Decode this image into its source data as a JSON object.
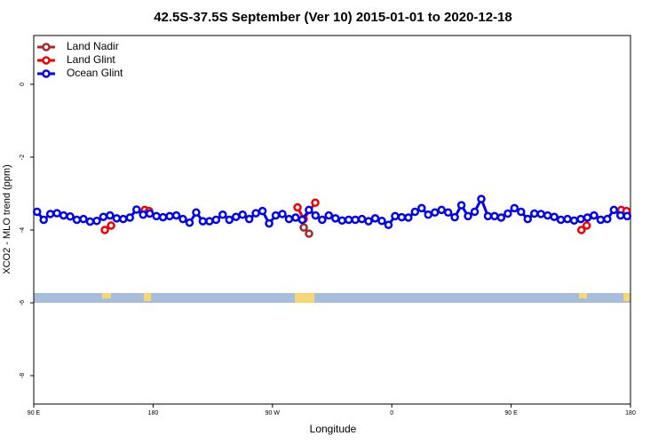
{
  "chart_data": {
    "type": "line",
    "title": "42.5S-37.5S September (Ver 10)   2015-01-01 to 2020-12-18",
    "xlabel": "Longitude",
    "ylabel": "XCO2 - MLO trend (ppm)",
    "xlim": [
      90,
      540
    ],
    "xticks": [
      {
        "value": 90,
        "label": "90 E"
      },
      {
        "value": 180,
        "label": "180"
      },
      {
        "value": 270,
        "label": "90 W"
      },
      {
        "value": 360,
        "label": "0"
      },
      {
        "value": 450,
        "label": "90 E"
      },
      {
        "value": 540,
        "label": "180"
      }
    ],
    "ylim": [
      -8.78,
      1.34
    ],
    "yticks": [
      0,
      -2,
      -4,
      -6,
      -8
    ],
    "legend": "upper left",
    "series": [
      {
        "name": "Land Nadir",
        "color": "#a52a2a",
        "x": [
          293.6,
          297.6
        ],
        "values": [
          -3.93,
          -4.1
        ]
      },
      {
        "name": "Land Glint",
        "color": "#ee0000",
        "x": [
          143.6,
          148.3,
          null,
          173.7,
          177,
          null,
          288.9,
          293.6,
          302.3,
          null,
          503,
          507,
          null,
          533,
          537
        ],
        "values": [
          -4.0,
          -3.88,
          null,
          -3.45,
          -3.48,
          null,
          -3.38,
          -3.7,
          -3.25,
          null,
          -4.0,
          -3.88,
          null,
          -3.45,
          -3.48
        ]
      },
      {
        "name": "Ocean Glint",
        "color": "#0000ee",
        "x": [
          92.5,
          97.5,
          102.5,
          107.5,
          112.5,
          117.5,
          122.5,
          127.5,
          132.5,
          137.5,
          142.5,
          147.5,
          152.5,
          157.5,
          162.5,
          167.5,
          172.5,
          177.5,
          182.5,
          187.5,
          192.5,
          197.5,
          202.5,
          207.5,
          212.5,
          217.5,
          222.5,
          227.5,
          232.5,
          237.5,
          242.5,
          247.5,
          252.5,
          257.5,
          262.5,
          267.5,
          272.5,
          277.5,
          282.5,
          287.5,
          292.5,
          297.5,
          302.5,
          307.5,
          312.5,
          317.5,
          322.5,
          327.5,
          332.5,
          337.5,
          342.5,
          347.5,
          352.5,
          357.5,
          362.5,
          367.5,
          372.5,
          377.5,
          382.5,
          387.5,
          392.5,
          397.5,
          402.5,
          407.5,
          412.5,
          417.5,
          422.5,
          427.5,
          432.5,
          437.5,
          442.5,
          447.5,
          452.5,
          457.5,
          462.5,
          467.5,
          472.5,
          477.5,
          482.5,
          487.5,
          492.5,
          497.5,
          502.5,
          507.5,
          512.5,
          517.5,
          522.5,
          527.5,
          532.5,
          537.5
        ],
        "values": [
          -3.5,
          -3.72,
          -3.56,
          -3.54,
          -3.6,
          -3.63,
          -3.72,
          -3.7,
          -3.77,
          -3.75,
          -3.64,
          -3.6,
          -3.68,
          -3.7,
          -3.66,
          -3.44,
          -3.58,
          -3.55,
          -3.62,
          -3.65,
          -3.62,
          -3.6,
          -3.7,
          -3.8,
          -3.52,
          -3.76,
          -3.76,
          -3.72,
          -3.58,
          -3.72,
          -3.64,
          -3.58,
          -3.7,
          -3.54,
          -3.48,
          -3.82,
          -3.6,
          -3.56,
          -3.7,
          -3.66,
          -3.72,
          -3.45,
          -3.6,
          -3.72,
          -3.6,
          -3.68,
          -3.74,
          -3.72,
          -3.72,
          -3.7,
          -3.76,
          -3.68,
          -3.75,
          -3.86,
          -3.62,
          -3.65,
          -3.66,
          -3.5,
          -3.4,
          -3.58,
          -3.52,
          -3.45,
          -3.52,
          -3.65,
          -3.32,
          -3.62,
          -3.5,
          -3.15,
          -3.62,
          -3.62,
          -3.66,
          -3.55,
          -3.4,
          -3.5,
          -3.7,
          -3.55,
          -3.56,
          -3.6,
          -3.64,
          -3.72,
          -3.7,
          -3.74,
          -3.7,
          -3.66,
          -3.6,
          -3.72,
          -3.7,
          -3.45,
          -3.6,
          -3.62
        ]
      }
    ]
  }
}
